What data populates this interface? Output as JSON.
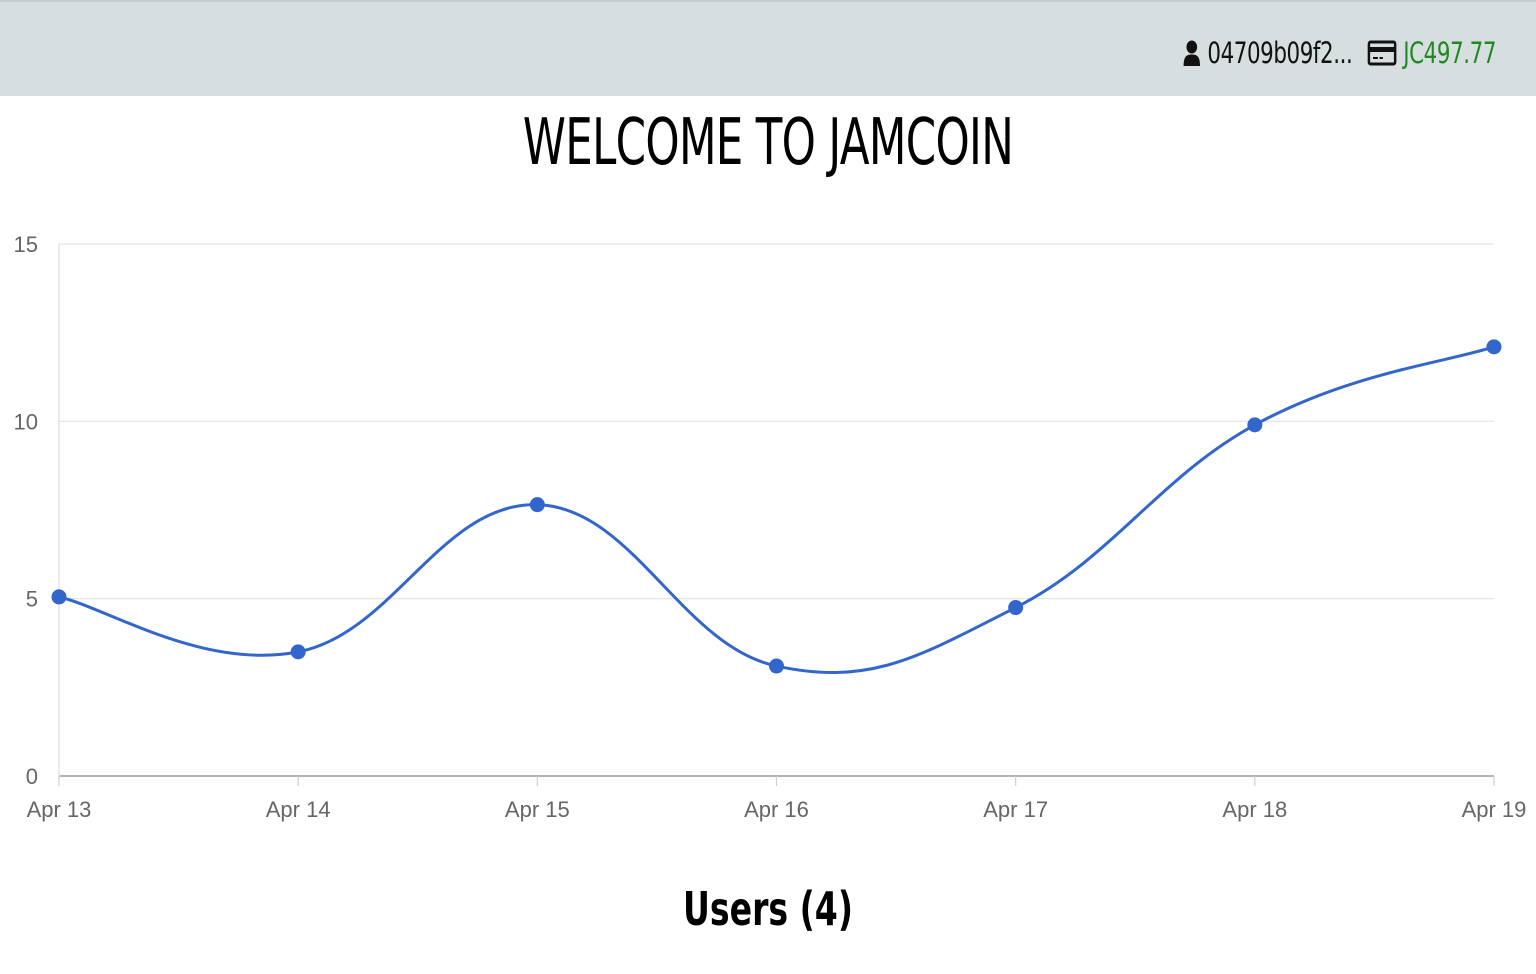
{
  "header": {
    "user_address": "04709b09f2...",
    "balance": "JC497.77",
    "user_icon": "user-icon",
    "wallet_icon": "credit-card-icon",
    "background_color": "#d6dee0",
    "balance_color": "#1f8a1f"
  },
  "main": {
    "title": "WELCOME TO JAMCOIN",
    "users_heading": "Users (4)"
  },
  "chart_data": {
    "type": "line",
    "title": "",
    "xlabel": "",
    "ylabel": "",
    "categories": [
      "Apr 13",
      "Apr 14",
      "Apr 15",
      "Apr 16",
      "Apr 17",
      "Apr 18",
      "Apr 19"
    ],
    "series": [
      {
        "values": [
          5.05,
          3.5,
          7.65,
          3.1,
          4.75,
          9.9,
          12.1
        ],
        "color": "#3366cc"
      }
    ],
    "yticks": [
      0,
      5,
      10,
      15
    ],
    "ylim": [
      0,
      15
    ],
    "grid": true,
    "smooth": true
  }
}
